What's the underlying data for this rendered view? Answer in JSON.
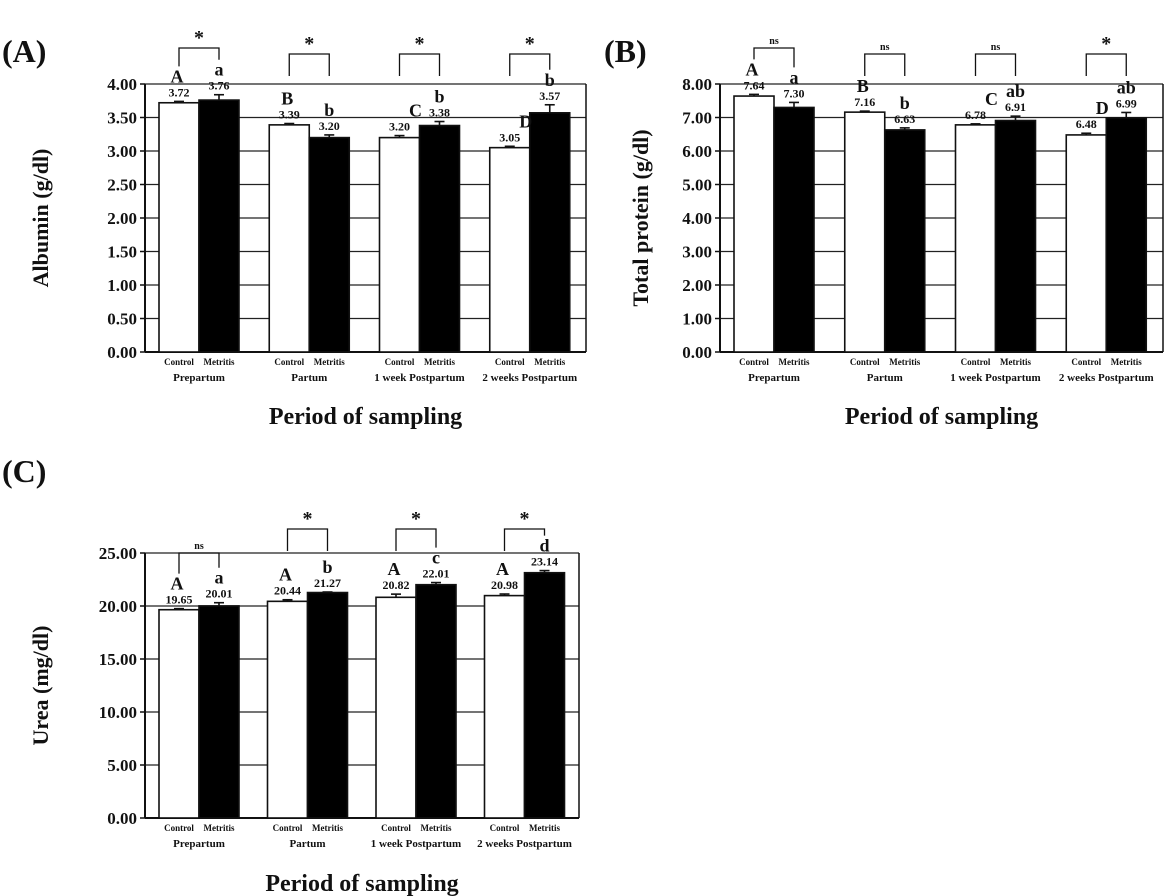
{
  "figure": {
    "shared_xlabel": "Period of sampling"
  },
  "chart_data": [
    {
      "panel_label": "(A)",
      "type": "bar",
      "categories": [
        "Prepartum",
        "Partum",
        "1 week Postpartum",
        "2 weeks Postpartum"
      ],
      "bar_labels": [
        "Control",
        "Metritis"
      ],
      "series": [
        {
          "name": "Control",
          "values": [
            3.72,
            3.39,
            3.2,
            3.05
          ],
          "errors": [
            0.02,
            0.02,
            0.03,
            0.02
          ],
          "value_labels": [
            "3.72",
            "3.39",
            "3.20",
            "3.05"
          ],
          "letters": [
            "A",
            "B",
            "",
            ""
          ]
        },
        {
          "name": "Metritis",
          "values": [
            3.76,
            3.2,
            3.38,
            3.57
          ],
          "errors": [
            0.08,
            0.04,
            0.06,
            0.12
          ],
          "value_labels": [
            "3.76",
            "3.20",
            "3.38",
            "3.57"
          ],
          "letters": [
            "a",
            "b",
            "b",
            "b"
          ]
        }
      ],
      "mid_letters": [
        "",
        "",
        "C",
        "D"
      ],
      "significance": [
        "*",
        "*",
        "*",
        "*"
      ],
      "xlabel": "Period of sampling",
      "ylabel": "Albumin (g/dl)",
      "ylim": [
        0,
        4.0
      ],
      "yticks": [
        "0.00",
        "0.50",
        "1.00",
        "1.50",
        "2.00",
        "2.50",
        "3.00",
        "3.50",
        "4.00"
      ],
      "grid": true
    },
    {
      "panel_label": "(B)",
      "type": "bar",
      "categories": [
        "Prepartum",
        "Partum",
        "1 week Postpartum",
        "2 weeks Postpartum"
      ],
      "bar_labels": [
        "Control",
        "Metritis"
      ],
      "series": [
        {
          "name": "Control",
          "values": [
            7.64,
            7.16,
            6.78,
            6.48
          ],
          "errors": [
            0.05,
            0.03,
            0.03,
            0.05
          ],
          "value_labels": [
            "7.64",
            "7.16",
            "6.78",
            "6.48"
          ],
          "letters": [
            "A",
            "B",
            "",
            ""
          ]
        },
        {
          "name": "Metritis",
          "values": [
            7.3,
            6.63,
            6.91,
            6.99
          ],
          "errors": [
            0.15,
            0.06,
            0.13,
            0.16
          ],
          "value_labels": [
            "7.30",
            "6.63",
            "6.91",
            "6.99"
          ],
          "letters": [
            "a",
            "b",
            "ab",
            "ab"
          ]
        }
      ],
      "mid_letters": [
        "",
        "",
        "C",
        "D"
      ],
      "significance": [
        "ns",
        "ns",
        "ns",
        "*"
      ],
      "xlabel": "Period of sampling",
      "ylabel": "Total protein (g/dl)",
      "ylim": [
        0,
        8.0
      ],
      "yticks": [
        "0.00",
        "1.00",
        "2.00",
        "3.00",
        "4.00",
        "5.00",
        "6.00",
        "7.00",
        "8.00"
      ],
      "grid": true
    },
    {
      "panel_label": "(C)",
      "type": "bar",
      "categories": [
        "Prepartum",
        "Partum",
        "1 week Postpartum",
        "2 weeks Postpartum"
      ],
      "bar_labels": [
        "Control",
        "Metritis"
      ],
      "series": [
        {
          "name": "Control",
          "values": [
            19.65,
            20.44,
            20.82,
            20.98
          ],
          "errors": [
            0.1,
            0.15,
            0.3,
            0.15
          ],
          "value_labels": [
            "19.65",
            "20.44",
            "20.82",
            "20.98"
          ],
          "letters": [
            "A",
            "A",
            "A",
            "A"
          ]
        },
        {
          "name": "Metritis",
          "values": [
            20.01,
            21.27,
            22.01,
            23.14
          ],
          "errors": [
            0.3,
            0.05,
            0.2,
            0.2
          ],
          "value_labels": [
            "20.01",
            "21.27",
            "22.01",
            "23.14"
          ],
          "letters": [
            "a",
            "b",
            "c",
            "d"
          ]
        }
      ],
      "mid_letters": [
        "",
        "",
        "",
        ""
      ],
      "significance": [
        "ns",
        "*",
        "*",
        "*"
      ],
      "xlabel": "Period of sampling",
      "ylabel": "Urea (mg/dl)",
      "ylim": [
        0,
        25.0
      ],
      "yticks": [
        "0.00",
        "5.00",
        "10.00",
        "15.00",
        "20.00",
        "25.00"
      ],
      "grid": true
    }
  ]
}
